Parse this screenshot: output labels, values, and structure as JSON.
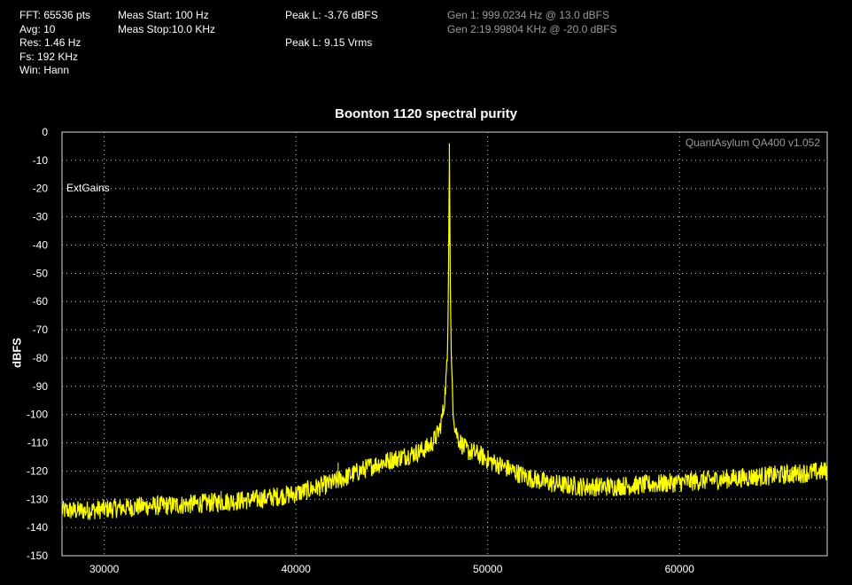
{
  "header": {
    "col1": [
      "FFT: 65536 pts",
      "Avg: 10",
      "Res: 1.46 Hz",
      "Fs: 192 KHz",
      "Win: Hann"
    ],
    "col2": [
      "Meas Start: 100 Hz",
      "Meas Stop:10.0 KHz"
    ],
    "col3": [
      "Peak L: -3.76 dBFS",
      "",
      "Peak L: 9.15 Vrms"
    ],
    "col4": [
      "Gen 1: 999.0234 Hz @ 13.0  dBFS",
      "Gen 2:19.99804 KHz @ -20.0  dBFS"
    ]
  },
  "plot": {
    "background": "#000000",
    "trace_color": "#ffff00",
    "grid_color": "#cfcfcf",
    "watermark": "QuantAsylum QA400 v1.052",
    "annotation": "ExtGains"
  },
  "chart_data": {
    "type": "line",
    "title": "Boonton 1120 spectral purity",
    "xlabel": "",
    "ylabel": "dBFS",
    "xlim": [
      27800,
      67700
    ],
    "ylim": [
      -150,
      0
    ],
    "x_ticks": [
      30000,
      40000,
      50000,
      60000
    ],
    "y_ticks": [
      0,
      -10,
      -20,
      -30,
      -40,
      -50,
      -60,
      -70,
      -80,
      -90,
      -100,
      -110,
      -120,
      -130,
      -140,
      -150
    ],
    "grid": true,
    "series": [
      {
        "x": [
          27800,
          29000,
          30000,
          32000,
          34000,
          36000,
          38000,
          40000,
          41000,
          42000,
          43000,
          44000,
          45000,
          46000,
          46500,
          47000,
          47300,
          47500,
          47700,
          47800,
          47900,
          47950,
          48000,
          48050,
          48100,
          48200,
          48300,
          48500,
          48800,
          49000,
          49500,
          50000,
          51000,
          52000,
          53000,
          54000,
          55000,
          56000,
          58000,
          60000,
          62000,
          64000,
          66000,
          67700
        ],
        "y": [
          -134,
          -134,
          -133.5,
          -132.5,
          -132,
          -131,
          -130,
          -128,
          -126,
          -124,
          -121,
          -118,
          -116,
          -114,
          -113,
          -111,
          -108,
          -105,
          -98,
          -90,
          -80,
          -55,
          -4,
          -55,
          -80,
          -98,
          -105,
          -109,
          -112,
          -113,
          -114,
          -116,
          -119,
          -122,
          -124,
          -125,
          -125.5,
          -125.5,
          -125,
          -124,
          -123,
          -122,
          -121,
          -120
        ]
      }
    ],
    "spurs": [
      {
        "x": 42200,
        "y": -117
      },
      {
        "x": 36100,
        "y": -127
      }
    ]
  }
}
